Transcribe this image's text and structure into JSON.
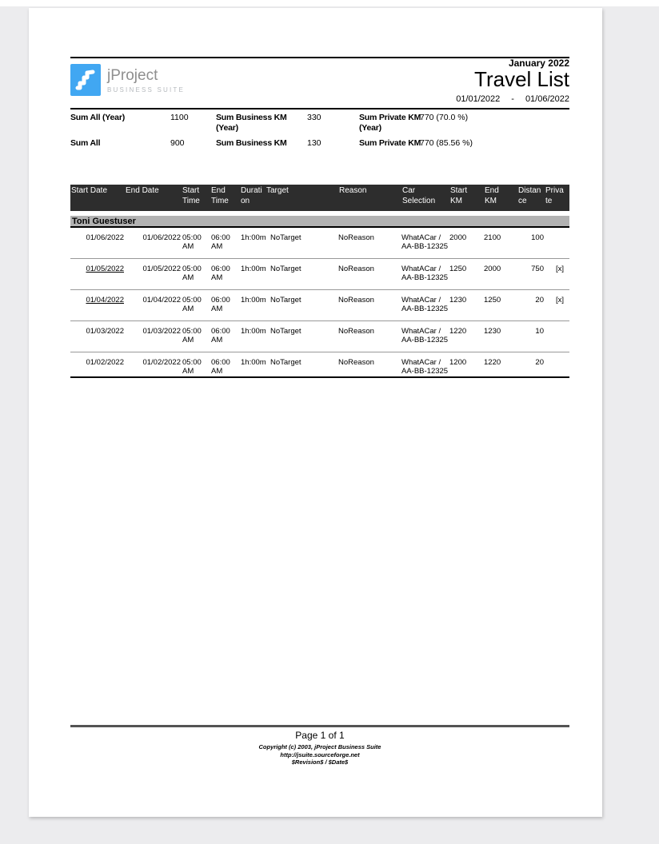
{
  "header": {
    "period": "January 2022",
    "title": "Travel List",
    "date_from": "01/01/2022",
    "date_dash": "-",
    "date_to": "01/06/2022",
    "logo": {
      "name": "jProject",
      "subtitle": "BUSINESS SUITE",
      "icon": "stairs-icon"
    }
  },
  "summary": {
    "rows": [
      {
        "cells": [
          {
            "label": "Sum All (Year)",
            "label2": "",
            "value": "1100"
          },
          {
            "label": "Sum Business KM",
            "label2": "(Year)",
            "value": "330"
          },
          {
            "label": "Sum Private KM",
            "label2": "(Year)",
            "value": "770 (70.0 %)"
          }
        ]
      },
      {
        "cells": [
          {
            "label": "Sum All",
            "label2": "",
            "value": "900"
          },
          {
            "label": "Sum Business KM",
            "label2": "",
            "value": "130"
          },
          {
            "label": "Sum Private KM",
            "label2": "",
            "value": "770 (85.56 %)"
          }
        ]
      }
    ]
  },
  "table": {
    "columns": [
      "Start Date",
      "End Date",
      "Start Time",
      "End Time",
      "Duration",
      "Target",
      "Reason",
      "Car Selection",
      "Start KM",
      "End KM",
      "Distance",
      "Private"
    ],
    "group": "Toni Guestuser",
    "rows": [
      {
        "start_date": "01/06/2022",
        "underlined": false,
        "end_date": "01/06/2022",
        "start_time": "05:00 AM",
        "end_time": "06:00 AM",
        "duration": "1h:00m",
        "target": "NoTarget",
        "reason": "NoReason",
        "car": "WhatACar / AA-BB-12325",
        "start_km": "2000",
        "end_km": "2100",
        "distance": "100",
        "private": ""
      },
      {
        "start_date": "01/05/2022",
        "underlined": true,
        "end_date": "01/05/2022",
        "start_time": "05:00 AM",
        "end_time": "06:00 AM",
        "duration": "1h:00m",
        "target": "NoTarget",
        "reason": "NoReason",
        "car": "WhatACar / AA-BB-12325",
        "start_km": "1250",
        "end_km": "2000",
        "distance": "750",
        "private": "[x]"
      },
      {
        "start_date": "01/04/2022",
        "underlined": true,
        "end_date": "01/04/2022",
        "start_time": "05:00 AM",
        "end_time": "06:00 AM",
        "duration": "1h:00m",
        "target": "NoTarget",
        "reason": "NoReason",
        "car": "WhatACar / AA-BB-12325",
        "start_km": "1230",
        "end_km": "1250",
        "distance": "20",
        "private": "[x]"
      },
      {
        "start_date": "01/03/2022",
        "underlined": false,
        "end_date": "01/03/2022",
        "start_time": "05:00 AM",
        "end_time": "06:00 AM",
        "duration": "1h:00m",
        "target": "NoTarget",
        "reason": "NoReason",
        "car": "WhatACar / AA-BB-12325",
        "start_km": "1220",
        "end_km": "1230",
        "distance": "10",
        "private": ""
      },
      {
        "start_date": "01/02/2022",
        "underlined": false,
        "end_date": "01/02/2022",
        "start_time": "05:00 AM",
        "end_time": "06:00 AM",
        "duration": "1h:00m",
        "target": "NoTarget",
        "reason": "NoReason",
        "car": "WhatACar / AA-BB-12325",
        "start_km": "1200",
        "end_km": "1220",
        "distance": "20",
        "private": ""
      }
    ]
  },
  "footer": {
    "page_info": "Page 1 of 1",
    "lines": [
      "Copyright (c) 2003, jProject Business Suite",
      "http://jsuite.sourceforge.net",
      "$Revision$ / $Date$"
    ]
  },
  "colors": {
    "logo_blue": "#41a7f2",
    "table_header_bg": "#2d2d2d",
    "group_row_bg": "#b2b2b2",
    "page_background": "#ececee"
  }
}
